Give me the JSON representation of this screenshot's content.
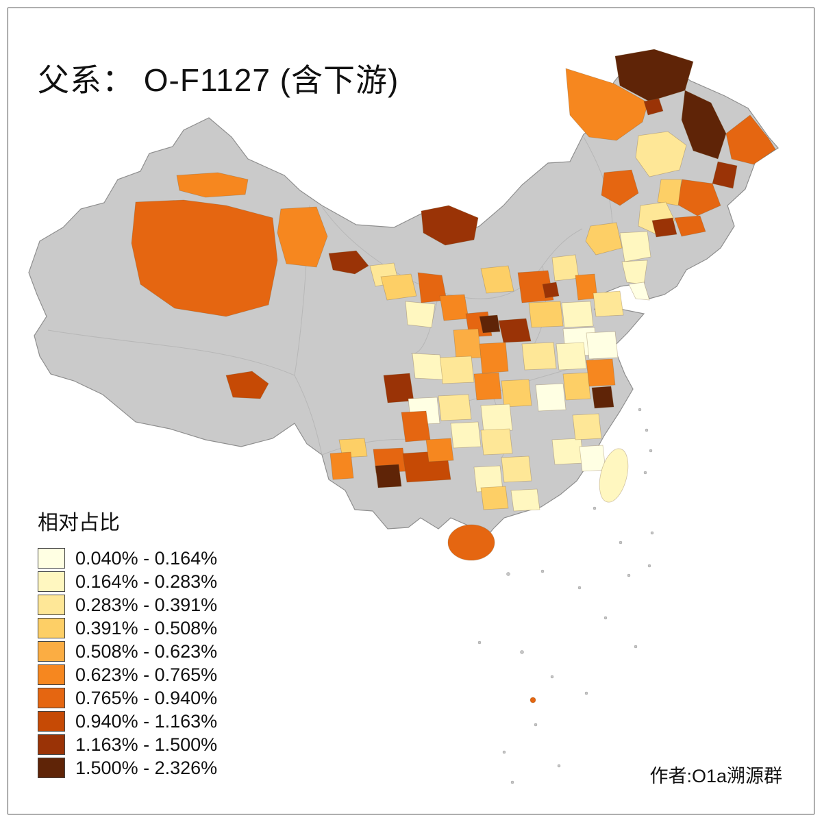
{
  "title": "父系： O-F1127 (含下游)",
  "legend": {
    "title": "相对占比",
    "items": [
      {
        "range": "0.040% - 0.164%",
        "color": "#FFFFE3"
      },
      {
        "range": "0.164% - 0.283%",
        "color": "#FFF7C0"
      },
      {
        "range": "0.283% - 0.391%",
        "color": "#FEE797"
      },
      {
        "range": "0.391% - 0.508%",
        "color": "#FDCF66"
      },
      {
        "range": "0.508% - 0.623%",
        "color": "#FBAD43"
      },
      {
        "range": "0.623% - 0.765%",
        "color": "#F6871F"
      },
      {
        "range": "0.765% - 0.940%",
        "color": "#E56611"
      },
      {
        "range": "0.940% - 1.163%",
        "color": "#C64A05"
      },
      {
        "range": "1.163% - 1.500%",
        "color": "#9A3306"
      },
      {
        "range": "1.500% - 2.326%",
        "color": "#5F2407"
      }
    ]
  },
  "credit": "作者:O1a溯源群",
  "map": {
    "type": "choropleth",
    "no_data_color": "#CACACA",
    "boundary_color": "#8F8F8F",
    "inner_line_color": "#B5B5B5"
  }
}
